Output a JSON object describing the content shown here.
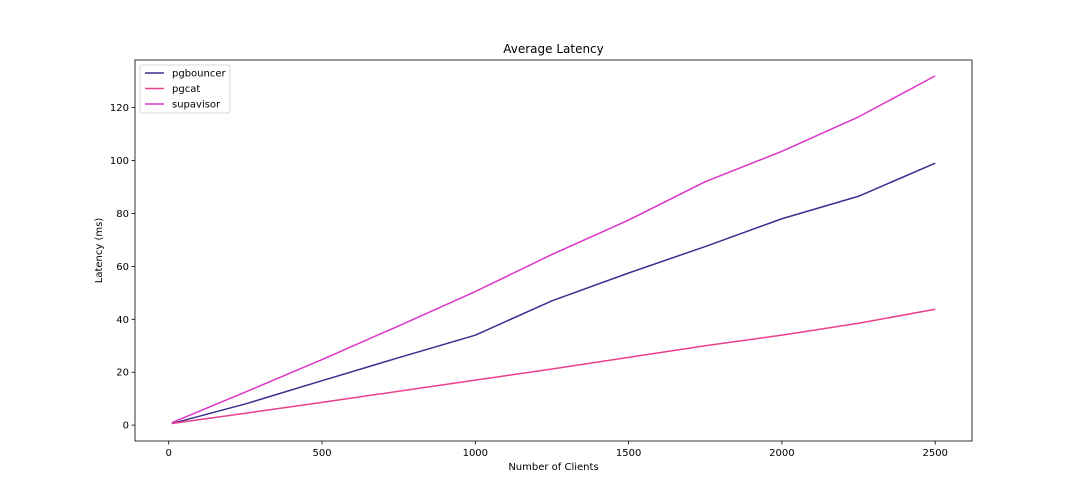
{
  "chart_data": {
    "type": "line",
    "title": "Average Latency",
    "xlabel": "Number of Clients",
    "ylabel": "Latency (ms)",
    "x": [
      10,
      250,
      500,
      750,
      1000,
      1250,
      1500,
      1750,
      2000,
      2250,
      2500
    ],
    "xlim": [
      -110,
      2620
    ],
    "ylim": [
      -6,
      138
    ],
    "xticks": [
      0,
      500,
      1000,
      1500,
      2000,
      2500
    ],
    "yticks": [
      0,
      20,
      40,
      60,
      80,
      100,
      120
    ],
    "grid": false,
    "legend_position": "top-left",
    "series": [
      {
        "name": "pgbouncer",
        "color": "#3b2f8f",
        "values": [
          0.6,
          8.0,
          16.8,
          25.5,
          34.0,
          47.0,
          57.5,
          67.5,
          78.0,
          86.5,
          99.0
        ]
      },
      {
        "name": "pgcat",
        "color": "#ec3f8a",
        "values": [
          0.6,
          4.5,
          8.6,
          12.8,
          17.0,
          21.2,
          25.6,
          30.0,
          34.0,
          38.5,
          43.8
        ]
      },
      {
        "name": "supavisor",
        "color": "#dd35c8",
        "values": [
          0.9,
          12.5,
          24.8,
          37.5,
          50.5,
          64.5,
          77.5,
          92.0,
          103.5,
          116.5,
          132.0
        ]
      }
    ]
  }
}
